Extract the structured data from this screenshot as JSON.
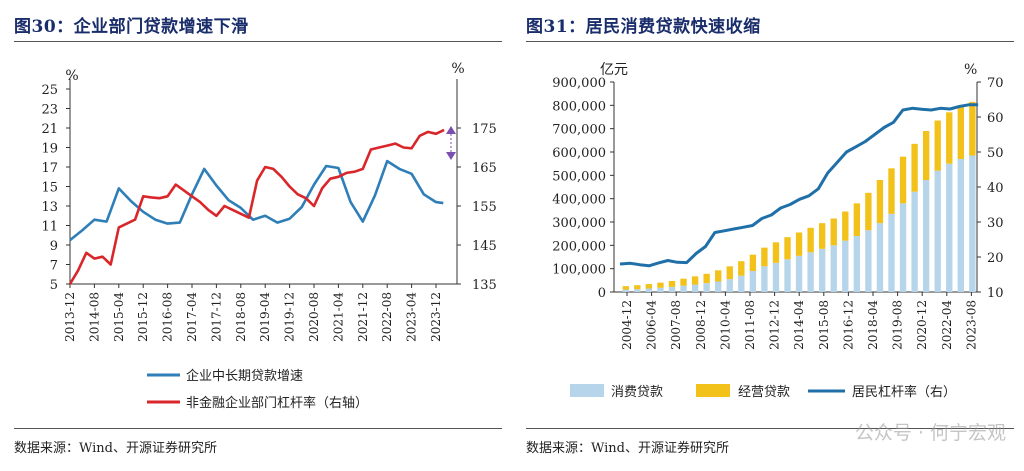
{
  "left": {
    "title": "图30：企业部门贷款增速下滑",
    "source": "数据来源：Wind、开源证券研究所",
    "chart_data": {
      "type": "line",
      "categories": [
        "2013-12",
        "2014-08",
        "2015-04",
        "2015-12",
        "2016-08",
        "2017-04",
        "2017-12",
        "2018-08",
        "2019-04",
        "2019-12",
        "2020-08",
        "2021-04",
        "2021-12",
        "2022-08",
        "2023-04",
        "2023-12"
      ],
      "left_unit": "%",
      "right_unit": "%",
      "ylim_left": [
        5,
        25
      ],
      "yticks_left": [
        5,
        7,
        9,
        11,
        13,
        15,
        17,
        19,
        21,
        23,
        25
      ],
      "ylim_right": [
        135,
        185
      ],
      "yticks_right": [
        135,
        145,
        155,
        165,
        175
      ],
      "series": [
        {
          "name": "企业中长期贷款增速",
          "axis": "left",
          "color": "#2e7eb8",
          "x": [
            0,
            0.5,
            1,
            1.5,
            2,
            2.5,
            3,
            3.5,
            4,
            4.5,
            5,
            5.5,
            6,
            6.5,
            7,
            7.5,
            8,
            8.5,
            9,
            9.5,
            10,
            10.5,
            11,
            11.5,
            12,
            12.5,
            13,
            13.5,
            14,
            14.5,
            15,
            15.3
          ],
          "values": [
            9.5,
            10.5,
            11.6,
            11.4,
            14.8,
            13.5,
            12.4,
            11.6,
            11.2,
            11.3,
            14.2,
            16.8,
            15.1,
            13.6,
            12.8,
            11.6,
            12.0,
            11.3,
            11.7,
            12.9,
            15.2,
            17.1,
            16.9,
            13.4,
            11.4,
            14.1,
            17.6,
            16.8,
            16.3,
            14.2,
            13.4,
            13.3
          ]
        },
        {
          "name": "非金融企业部门杠杆率（右轴）",
          "axis": "right",
          "color": "#d9262a",
          "x": [
            0,
            0.33,
            0.67,
            1,
            1.33,
            1.67,
            2,
            2.33,
            2.67,
            3,
            3.33,
            3.67,
            4,
            4.33,
            4.67,
            5,
            5.33,
            5.67,
            6,
            6.33,
            6.67,
            7,
            7.33,
            7.67,
            8,
            8.33,
            8.67,
            9,
            9.33,
            9.67,
            10,
            10.33,
            10.67,
            11,
            11.33,
            11.67,
            12,
            12.33,
            12.67,
            13,
            13.33,
            13.67,
            14,
            14.33,
            14.67,
            15,
            15.33
          ],
          "values": [
            135,
            138.5,
            143,
            141.5,
            142,
            140,
            149.5,
            150.5,
            151.5,
            157.5,
            157.2,
            157.0,
            157.5,
            160.5,
            159.0,
            157.5,
            156.0,
            154.0,
            152.5,
            155.0,
            154.0,
            153.0,
            152.0,
            161.5,
            165.0,
            164.5,
            162.5,
            160.0,
            158.0,
            157.0,
            155.0,
            159.5,
            162.0,
            162.5,
            163.5,
            163.8,
            164.5,
            169.5,
            170.0,
            170.5,
            171.0,
            170.0,
            169.8,
            173.0,
            174.0,
            173.5,
            174.5
          ]
        }
      ],
      "annotation": "double-arrow"
    }
  },
  "right": {
    "title": "图31：居民消费贷款快速收缩",
    "source": "数据来源：Wind、开源证券研究所",
    "watermark": "公众号 · 何宁宏观",
    "chart_data": {
      "type": "bar",
      "categories": [
        "2004-12",
        "2006-04",
        "2007-08",
        "2008-12",
        "2010-04",
        "2011-08",
        "2012-12",
        "2014-04",
        "2015-08",
        "2016-12",
        "2018-04",
        "2019-08",
        "2020-12",
        "2022-04",
        "2023-08"
      ],
      "left_unit": "亿元",
      "right_unit": "%",
      "ylim_left": [
        0,
        900000
      ],
      "yticks_left": [
        0,
        100000,
        200000,
        300000,
        400000,
        500000,
        600000,
        700000,
        800000,
        900000
      ],
      "ylim_right": [
        10,
        70
      ],
      "yticks_right": [
        10,
        20,
        30,
        40,
        50,
        60,
        70
      ],
      "bar_x_range": [
        2004.95,
        2024.0
      ],
      "consumer_loans": [
        10000,
        12000,
        15000,
        18000,
        22000,
        27000,
        32000,
        38000,
        45000,
        55000,
        70000,
        90000,
        110000,
        125000,
        140000,
        155000,
        170000,
        185000,
        200000,
        220000,
        240000,
        265000,
        295000,
        335000,
        380000,
        430000,
        480000,
        520000,
        550000,
        570000,
        585000
      ],
      "business_loans": [
        15000,
        17000,
        19000,
        22000,
        25000,
        30000,
        35000,
        40000,
        48000,
        55000,
        62000,
        70000,
        80000,
        88000,
        95000,
        100000,
        105000,
        110000,
        115000,
        125000,
        140000,
        160000,
        185000,
        195000,
        200000,
        205000,
        210000,
        215000,
        220000,
        225000,
        230000
      ],
      "leverage": {
        "x": [
          2004.95,
          2005.5,
          2006,
          2006.5,
          2007,
          2007.5,
          2008,
          2008.5,
          2009,
          2009.5,
          2010,
          2010.5,
          2011,
          2011.5,
          2012,
          2012.5,
          2013,
          2013.5,
          2014,
          2014.5,
          2015,
          2015.5,
          2016,
          2016.5,
          2017,
          2017.5,
          2018,
          2018.5,
          2019,
          2019.5,
          2020,
          2020.5,
          2021,
          2021.5,
          2022,
          2022.5,
          2023,
          2023.5,
          2024
        ],
        "values": [
          18,
          18.2,
          17.8,
          17.5,
          18.3,
          19,
          18.5,
          18.4,
          21,
          23,
          27,
          27.5,
          28,
          28.5,
          29,
          31,
          32,
          34,
          35,
          36.5,
          37.5,
          39.5,
          44,
          47,
          50,
          51.5,
          53,
          55,
          57,
          58.5,
          62,
          62.5,
          62.2,
          62,
          62.5,
          62.3,
          63,
          63.5,
          63.5
        ]
      },
      "series": [
        {
          "name": "消费贷款",
          "color": "#b6d5eb"
        },
        {
          "name": "经营贷款",
          "color": "#f2c11a"
        },
        {
          "name": "居民杠杆率（右）",
          "color": "#1f6fa8"
        }
      ]
    }
  }
}
